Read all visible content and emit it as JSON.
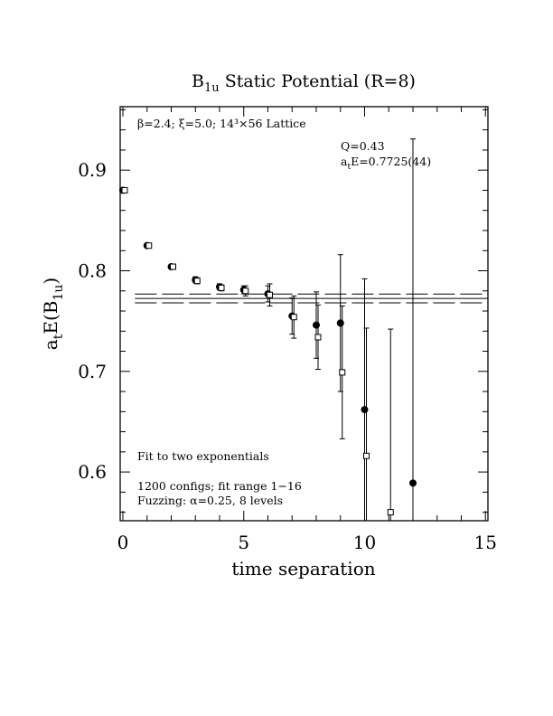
{
  "chart_data": {
    "type": "scatter",
    "title": "B",
    "title_sub": "1u",
    "title_rest": " Static Potential (R=8)",
    "xlabel": "time separation",
    "ylabel_main": "a",
    "ylabel_sub1": "t",
    "ylabel_mid": "E(B",
    "ylabel_sub2": "1u",
    "ylabel_end": ")",
    "xlim": [
      0,
      15
    ],
    "ylim": [
      0.552,
      0.963
    ],
    "xticks": [
      0,
      5,
      10,
      15
    ],
    "xtick_labels": [
      "0",
      "5",
      "10",
      "15"
    ],
    "yticks": [
      0.6,
      0.7,
      0.8,
      0.9
    ],
    "ytick_labels": [
      "0.6",
      "0.7",
      "0.8",
      "0.9"
    ],
    "lattice_text": "β=2.4; ξ=5.0; 14³×56 Lattice",
    "fit_q": "Q=0.43",
    "fit_energy_prefix": "a",
    "fit_energy_sub": "t",
    "fit_energy_rest": "E=0.7725(44)",
    "notes": [
      "Fit to two exponentials",
      "1200 configs; fit range 1−16",
      "Fuzzing: α=0.25, 8 levels"
    ],
    "fit": {
      "value": 0.7725,
      "err": 0.0044,
      "x_start": 0.5,
      "x_end": 15
    },
    "series": [
      {
        "marker": "filled-circle",
        "points": [
          {
            "x": 0,
            "y": 0.88,
            "err": 0.002
          },
          {
            "x": 1,
            "y": 0.825,
            "err": 0.002
          },
          {
            "x": 2,
            "y": 0.804,
            "err": 0.002
          },
          {
            "x": 3,
            "y": 0.791,
            "err": 0.003
          },
          {
            "x": 4,
            "y": 0.784,
            "err": 0.003
          },
          {
            "x": 5,
            "y": 0.781,
            "err": 0.004
          },
          {
            "x": 6,
            "y": 0.777,
            "err": 0.008
          },
          {
            "x": 7,
            "y": 0.755,
            "err": 0.018
          },
          {
            "x": 8,
            "y": 0.746,
            "err": 0.033
          },
          {
            "x": 9,
            "y": 0.748,
            "err": 0.068
          },
          {
            "x": 10,
            "y": 0.662,
            "err": 0.13
          },
          {
            "x": 12,
            "y": 0.589,
            "err": 0.342
          }
        ]
      },
      {
        "marker": "open-square",
        "points": [
          {
            "x": 0,
            "y": 0.88,
            "err": 0.002
          },
          {
            "x": 1,
            "y": 0.825,
            "err": 0.002
          },
          {
            "x": 2,
            "y": 0.804,
            "err": 0.002
          },
          {
            "x": 3,
            "y": 0.79,
            "err": 0.003
          },
          {
            "x": 4,
            "y": 0.783,
            "err": 0.003
          },
          {
            "x": 5,
            "y": 0.78,
            "err": 0.005
          },
          {
            "x": 6,
            "y": 0.776,
            "err": 0.011
          },
          {
            "x": 7,
            "y": 0.754,
            "err": 0.021
          },
          {
            "x": 8,
            "y": 0.734,
            "err": 0.032
          },
          {
            "x": 9,
            "y": 0.699,
            "err": 0.066
          },
          {
            "x": 10,
            "y": 0.616,
            "err": 0.127
          },
          {
            "x": 11,
            "y": 0.56,
            "err": 0.182
          }
        ]
      }
    ]
  }
}
